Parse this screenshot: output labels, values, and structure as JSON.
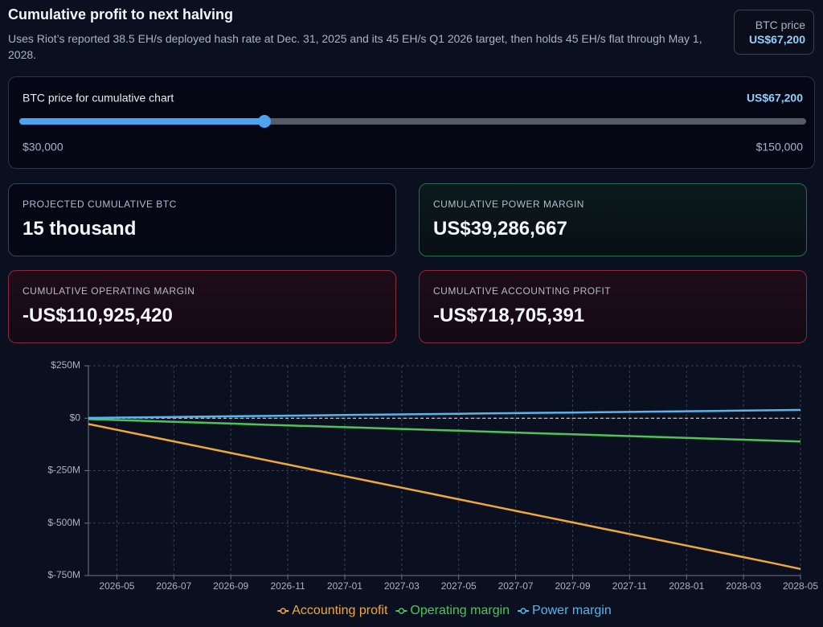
{
  "header": {
    "title": "Cumulative profit to next halving",
    "subtitle": "Uses Riot’s reported 38.5 EH/s deployed hash rate at Dec. 31, 2025 and its 45 EH/s Q1 2026 target, then holds 45 EH/s flat through May 1, 2028.",
    "btc_price_label": "BTC price"
  },
  "slider": {
    "label": "BTC price for cumulative chart",
    "value": 67200,
    "value_label": "US$67,200",
    "min": {
      "value": 30000,
      "label": "$30,000"
    },
    "max": {
      "value": 150000,
      "label": "$150,000"
    }
  },
  "cards": [
    {
      "label": "Projected cumulative BTC",
      "value": "15 thousand",
      "tone": "neutral"
    },
    {
      "label": "Cumulative power margin",
      "value": "US$39,286,667",
      "tone": "positive"
    },
    {
      "label": "Cumulative operating margin",
      "value": "-US$110,925,420",
      "tone": "negative"
    },
    {
      "label": "Cumulative accounting profit",
      "value": "-US$718,705,391",
      "tone": "negative"
    }
  ],
  "chart_data": {
    "type": "line",
    "x": [
      "2026-04",
      "2026-05",
      "2026-06",
      "2026-07",
      "2026-08",
      "2026-09",
      "2026-10",
      "2026-11",
      "2026-12",
      "2027-01",
      "2027-02",
      "2027-03",
      "2027-04",
      "2027-05",
      "2027-06",
      "2027-07",
      "2027-08",
      "2027-09",
      "2027-10",
      "2027-11",
      "2027-12",
      "2028-01",
      "2028-02",
      "2028-03",
      "2028-04",
      "2028-05"
    ],
    "series": [
      {
        "name": "Accounting profit",
        "color": "#f0a83a",
        "values": [
          -27.6,
          -55.2,
          -82.8,
          -110.4,
          -138,
          -165.6,
          -193.2,
          -220.8,
          -248.4,
          -276,
          -303.6,
          -331.2,
          -358.8,
          -386.4,
          -414,
          -441.6,
          -469.2,
          -496.8,
          -524.4,
          -552,
          -579.6,
          -607.2,
          -634.8,
          -662.4,
          -690,
          -718.7
        ]
      },
      {
        "name": "Operating margin",
        "color": "#4fc35a",
        "values": [
          -4.3,
          -8.5,
          -12.8,
          -17.1,
          -21.3,
          -25.6,
          -29.9,
          -34.1,
          -38.4,
          -42.7,
          -46.9,
          -51.2,
          -55.5,
          -59.7,
          -64,
          -68.3,
          -72.5,
          -76.8,
          -81.1,
          -85.3,
          -89.6,
          -93.9,
          -98.1,
          -102.4,
          -106.7,
          -110.9
        ]
      },
      {
        "name": "Power margin",
        "color": "#5ab4ec",
        "values": [
          1.5,
          3,
          4.5,
          6,
          7.6,
          9.1,
          10.6,
          12.1,
          13.6,
          15.1,
          16.6,
          18.1,
          19.6,
          21.2,
          22.7,
          24.2,
          25.7,
          27.2,
          28.7,
          30.2,
          31.7,
          33.2,
          34.8,
          36.3,
          37.8,
          39.3
        ]
      }
    ],
    "xlim": [
      "2026-04",
      "2028-05"
    ],
    "xticks": [
      "2026-05",
      "2026-07",
      "2026-09",
      "2026-11",
      "2027-01",
      "2027-03",
      "2027-05",
      "2027-07",
      "2027-09",
      "2027-11",
      "2028-01",
      "2028-03",
      "2028-05"
    ],
    "ylim": [
      -750,
      250
    ],
    "yticks": [
      {
        "value": -750,
        "label": "$-750M"
      },
      {
        "value": -500,
        "label": "$-500M"
      },
      {
        "value": -250,
        "label": "$-250M"
      },
      {
        "value": 0,
        "label": "$0"
      },
      {
        "value": 250,
        "label": "$250M"
      }
    ],
    "grid": true
  }
}
